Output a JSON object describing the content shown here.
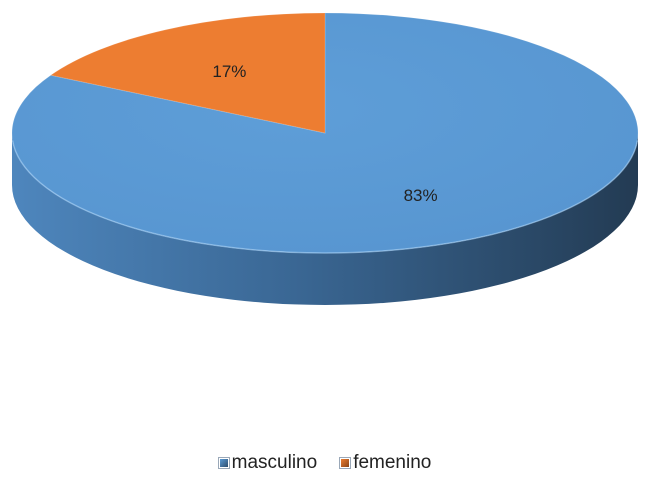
{
  "chart_data": {
    "type": "pie",
    "three_d": true,
    "categories": [
      "masculino",
      "femenino"
    ],
    "values": [
      83,
      17
    ],
    "data_labels": [
      "83%",
      "17%"
    ],
    "colors": [
      "#5b9bd5",
      "#ed7d31"
    ],
    "title": "",
    "legend_position": "bottom"
  }
}
